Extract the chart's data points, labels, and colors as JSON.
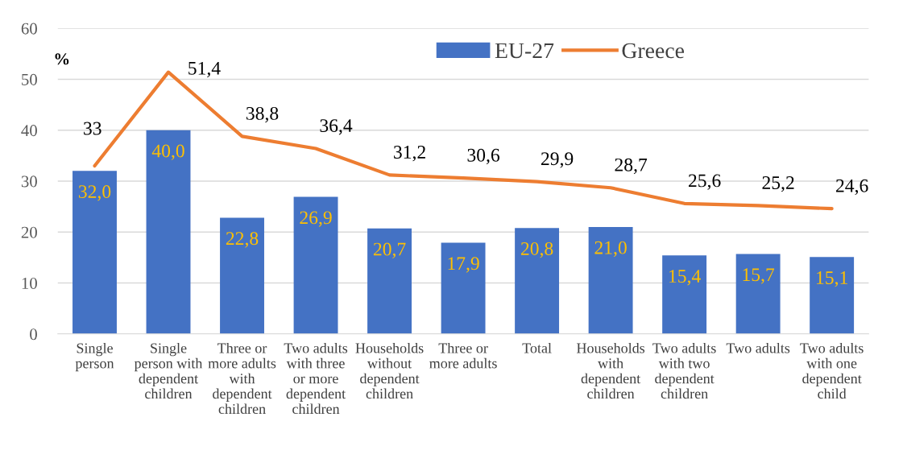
{
  "chart_data": {
    "type": "bar",
    "ylabel": "%",
    "categories": [
      "Single person",
      "Single person with dependent children",
      "Three or more adults with dependent children",
      "Two adults with three or more dependent children",
      "Households without dependent children",
      "Three or more adults",
      "Total",
      "Households with dependent children",
      "Two adults with two dependent children",
      "Two adults",
      "Two adults with one dependent child"
    ],
    "series": [
      {
        "name": "EU-27",
        "color": "#4472c4",
        "values": [
          32.0,
          40.0,
          22.8,
          26.9,
          20.7,
          17.9,
          20.8,
          21.0,
          15.4,
          15.7,
          15.1
        ],
        "value_labels": [
          "32,0",
          "40,0",
          "22,8",
          "26,9",
          "20,7",
          "17,9",
          "20,8",
          "21,0",
          "15,4",
          "15,7",
          "15,1"
        ]
      },
      {
        "name": "Greece",
        "type": "line",
        "color": "#ed7d31",
        "values": [
          33,
          51.4,
          38.8,
          36.4,
          31.2,
          30.6,
          29.9,
          28.7,
          25.6,
          25.2,
          24.6
        ],
        "value_labels": [
          "33",
          "51,4",
          "38,8",
          "36,4",
          "31,2",
          "30,6",
          "29,9",
          "28,7",
          "25,6",
          "25,2",
          "24,6"
        ]
      }
    ],
    "ylim": [
      0,
      60
    ],
    "yticks": [
      0,
      10,
      20,
      30,
      40,
      50,
      60
    ],
    "grid": "y",
    "legend": "top"
  }
}
